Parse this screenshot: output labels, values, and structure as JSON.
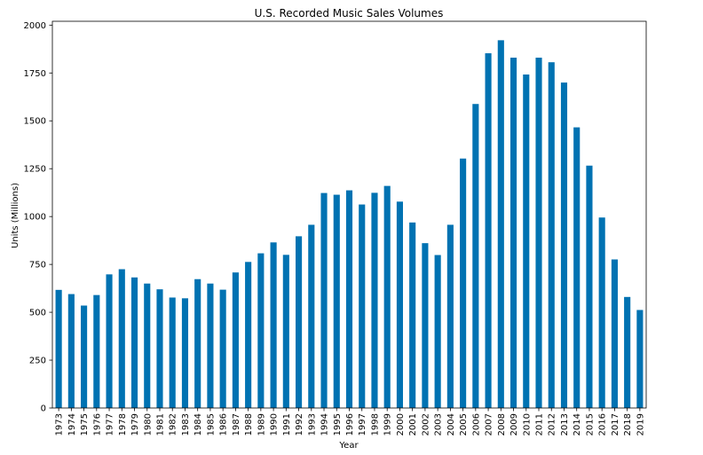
{
  "chart_data": {
    "type": "bar",
    "title": "U.S. Recorded Music Sales Volumes",
    "xlabel": "Year",
    "ylabel": "Units (Millions)",
    "ylim": [
      0,
      2020
    ],
    "yticks": [
      0,
      250,
      500,
      750,
      1000,
      1250,
      1500,
      1750,
      2000
    ],
    "grid": false,
    "legend": "none",
    "bar_color": "#0072b2",
    "categories": [
      "1973",
      "1974",
      "1975",
      "1976",
      "1977",
      "1978",
      "1979",
      "1980",
      "1981",
      "1982",
      "1983",
      "1984",
      "1985",
      "1986",
      "1987",
      "1988",
      "1989",
      "1990",
      "1991",
      "1992",
      "1993",
      "1994",
      "1995",
      "1996",
      "1997",
      "1998",
      "1999",
      "2000",
      "2001",
      "2002",
      "2003",
      "2004",
      "2005",
      "2006",
      "2007",
      "2008",
      "2009",
      "2010",
      "2011",
      "2012",
      "2013",
      "2014",
      "2015",
      "2016",
      "2017",
      "2018",
      "2019"
    ],
    "values": [
      617,
      595,
      535,
      590,
      698,
      725,
      682,
      650,
      620,
      577,
      573,
      673,
      650,
      618,
      708,
      763,
      808,
      865,
      800,
      897,
      957,
      1123,
      1114,
      1137,
      1063,
      1124,
      1160,
      1078,
      969,
      861,
      799,
      957,
      1303,
      1588,
      1853,
      1921,
      1830,
      1742,
      1830,
      1806,
      1700,
      1466,
      1266,
      995,
      776,
      580,
      512
    ]
  }
}
